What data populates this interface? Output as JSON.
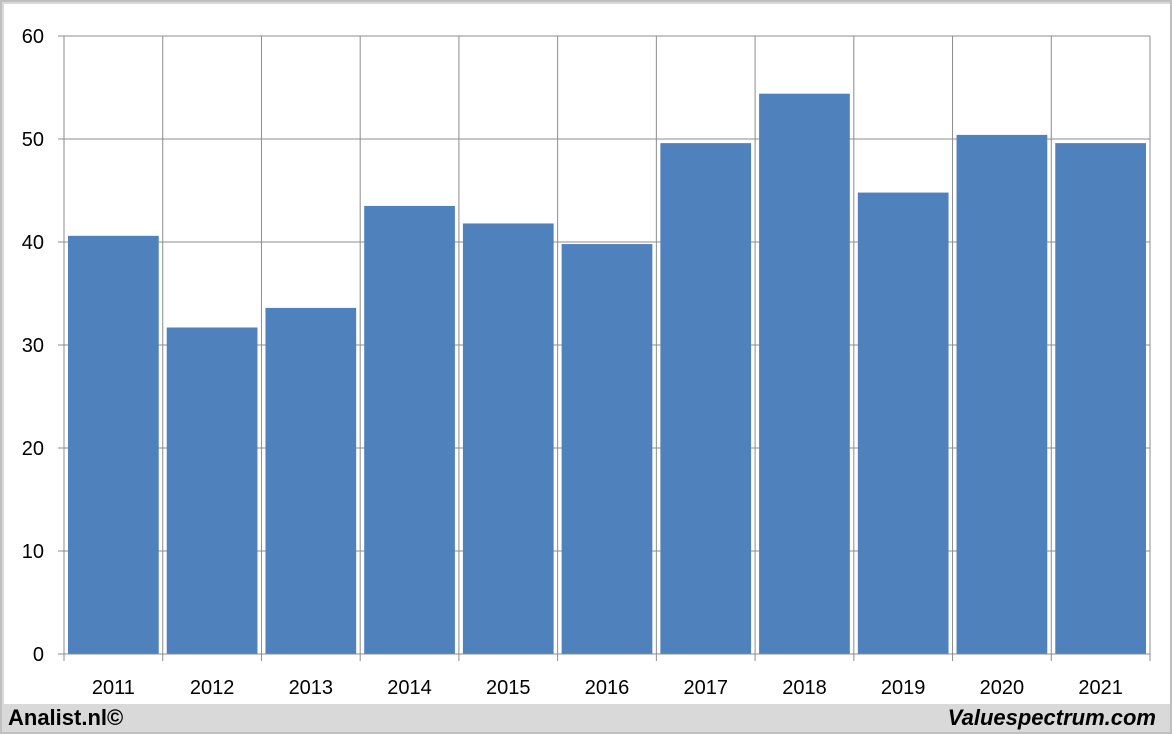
{
  "chart_data": {
    "type": "bar",
    "categories": [
      "2011",
      "2012",
      "2013",
      "2014",
      "2015",
      "2016",
      "2017",
      "2018",
      "2019",
      "2020",
      "2021"
    ],
    "values": [
      40.6,
      31.7,
      33.6,
      43.5,
      41.8,
      39.8,
      49.6,
      54.4,
      44.8,
      50.4,
      49.6
    ],
    "ylim": [
      0,
      60
    ],
    "yticks": [
      0,
      10,
      20,
      30,
      40,
      50,
      60
    ],
    "grid": true,
    "bar_color": "#4f81bd"
  },
  "footer": {
    "left": "Analist.nl©",
    "right": "Valuespectrum.com"
  }
}
